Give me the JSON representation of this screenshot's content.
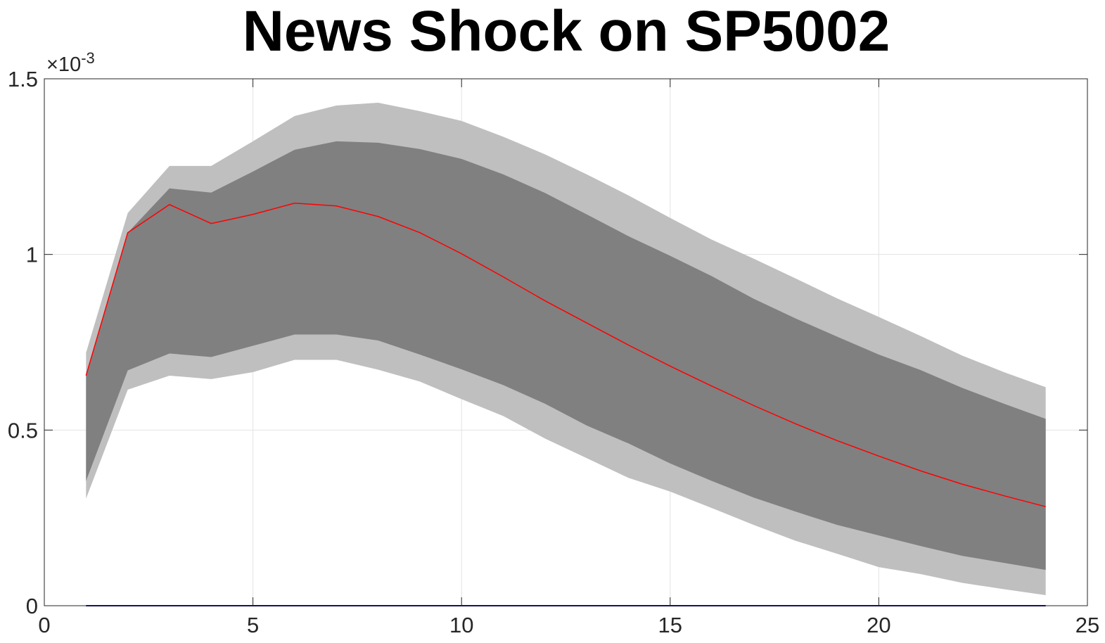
{
  "chart_data": {
    "type": "area",
    "title": "News Shock on SP5002",
    "xlabel": "",
    "ylabel": "",
    "y_exponent_label": "×10",
    "y_exponent_power": "-3",
    "xlim": [
      0,
      25
    ],
    "ylim": [
      0,
      1.5
    ],
    "x_ticks": [
      0,
      5,
      10,
      15,
      20,
      25
    ],
    "x_tick_labels": [
      "0",
      "5",
      "10",
      "15",
      "20",
      "25"
    ],
    "y_ticks": [
      0,
      0.5,
      1,
      1.5
    ],
    "y_tick_labels": [
      "0",
      "0.5",
      "1",
      "1.5"
    ],
    "grid": true,
    "colors": {
      "outer_band": "#bfbfbf",
      "inner_band": "#808080",
      "median": "#ff0000",
      "zero_line": "#00008b",
      "grid": "#e3e3e3",
      "axes": "#262626"
    },
    "x": [
      1,
      2,
      3,
      4,
      5,
      6,
      7,
      8,
      9,
      10,
      11,
      12,
      13,
      14,
      15,
      16,
      17,
      18,
      19,
      20,
      21,
      22,
      23,
      24
    ],
    "series": [
      {
        "values": [
          0.305,
          0.615,
          0.655,
          0.645,
          0.665,
          0.7,
          0.7,
          0.672,
          0.638,
          0.588,
          0.54,
          0.476,
          0.42,
          0.364,
          0.325,
          0.278,
          0.23,
          0.185,
          0.148,
          0.11,
          0.09,
          0.065,
          0.047,
          0.03
        ]
      },
      {
        "values": [
          0.72,
          1.118,
          1.252,
          1.252,
          1.322,
          1.394,
          1.424,
          1.432,
          1.408,
          1.38,
          1.335,
          1.285,
          1.228,
          1.168,
          1.104,
          1.042,
          0.988,
          0.932,
          0.875,
          0.822,
          0.768,
          0.712,
          0.665,
          0.622
        ]
      },
      {
        "values": [
          0.355,
          0.67,
          0.718,
          0.708,
          0.74,
          0.772,
          0.772,
          0.755,
          0.715,
          0.673,
          0.628,
          0.575,
          0.513,
          0.462,
          0.405,
          0.355,
          0.308,
          0.268,
          0.23,
          0.2,
          0.17,
          0.142,
          0.122,
          0.102
        ]
      },
      {
        "values": [
          0.655,
          1.062,
          1.188,
          1.176,
          1.236,
          1.298,
          1.322,
          1.318,
          1.3,
          1.272,
          1.228,
          1.175,
          1.114,
          1.052,
          0.996,
          0.938,
          0.874,
          0.818,
          0.766,
          0.715,
          0.671,
          0.62,
          0.575,
          0.532
        ]
      },
      {
        "values": [
          0.655,
          1.062,
          1.142,
          1.088,
          1.114,
          1.146,
          1.138,
          1.108,
          1.062,
          1.002,
          0.936,
          0.868,
          0.805,
          0.742,
          0.682,
          0.625,
          0.57,
          0.518,
          0.47,
          0.426,
          0.384,
          0.346,
          0.313,
          0.282
        ]
      }
    ]
  }
}
